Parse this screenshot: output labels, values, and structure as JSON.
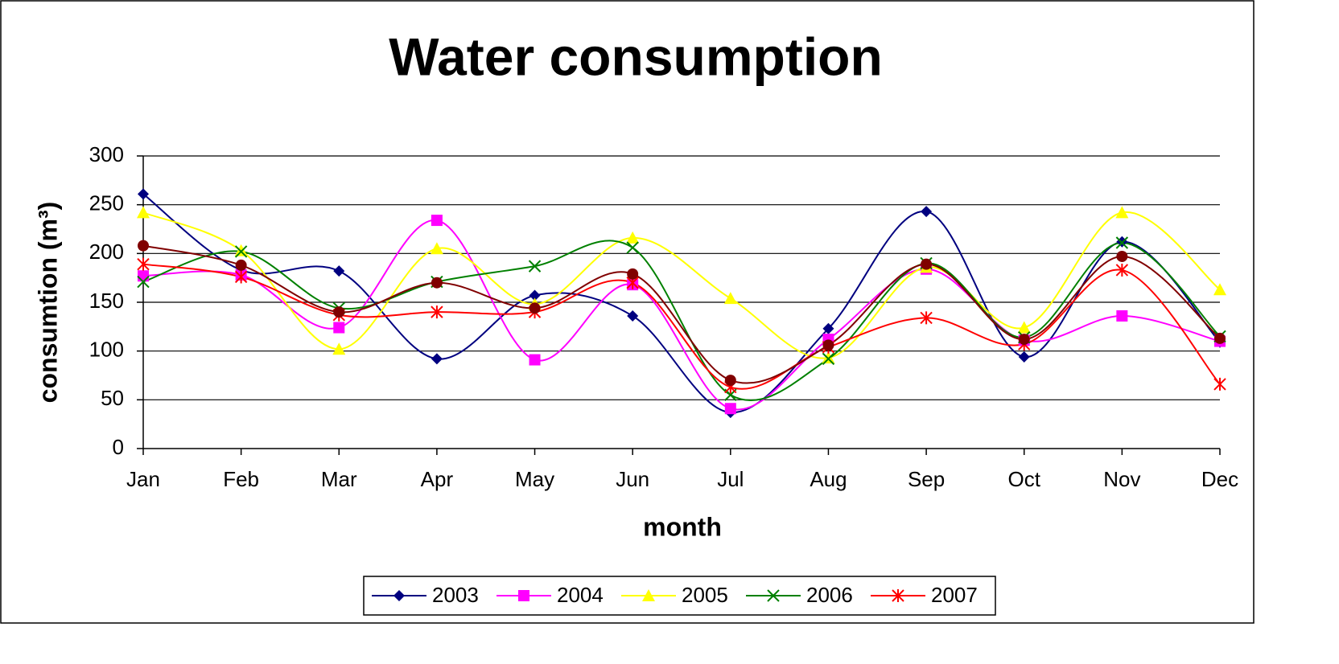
{
  "chart_data": {
    "type": "line",
    "title": "Water consumption",
    "x_label": "month",
    "y_label": "consumtion (m³)",
    "categories": [
      "Jan",
      "Feb",
      "Mar",
      "Apr",
      "May",
      "Jun",
      "Jul",
      "Aug",
      "Sep",
      "Oct",
      "Nov",
      "Dec"
    ],
    "ylim": [
      0,
      300
    ],
    "yticks": [
      0,
      50,
      100,
      150,
      200,
      250,
      300
    ],
    "grid": true,
    "smooth": true,
    "legend": "bottom",
    "series": [
      {
        "name": "2003",
        "color": "#000080",
        "marker": "diamond",
        "values": [
          261,
          183,
          182,
          92,
          157,
          136,
          37,
          123,
          243,
          94,
          212,
          109
        ]
      },
      {
        "name": "2004",
        "color": "#ff00ff",
        "marker": "square",
        "values": [
          177,
          178,
          124,
          234,
          91,
          168,
          41,
          112,
          184,
          111,
          136,
          110
        ]
      },
      {
        "name": "2005",
        "color": "#ffff00",
        "marker": "triangle",
        "values": [
          242,
          203,
          102,
          205,
          148,
          216,
          154,
          93,
          186,
          124,
          242,
          163
        ]
      },
      {
        "name": "2006",
        "color": "#008000",
        "marker": "x",
        "values": [
          171,
          202,
          144,
          171,
          187,
          206,
          55,
          92,
          190,
          114,
          211,
          115
        ]
      },
      {
        "name": "2007",
        "color": "#ff0000",
        "marker": "star",
        "values": [
          189,
          176,
          137,
          140,
          140,
          170,
          63,
          104,
          134,
          107,
          183,
          66
        ]
      },
      {
        "color": "#800000",
        "marker": "circle",
        "values": [
          208,
          188,
          140,
          170,
          144,
          179,
          70,
          106,
          189,
          112,
          197,
          113
        ]
      }
    ]
  }
}
